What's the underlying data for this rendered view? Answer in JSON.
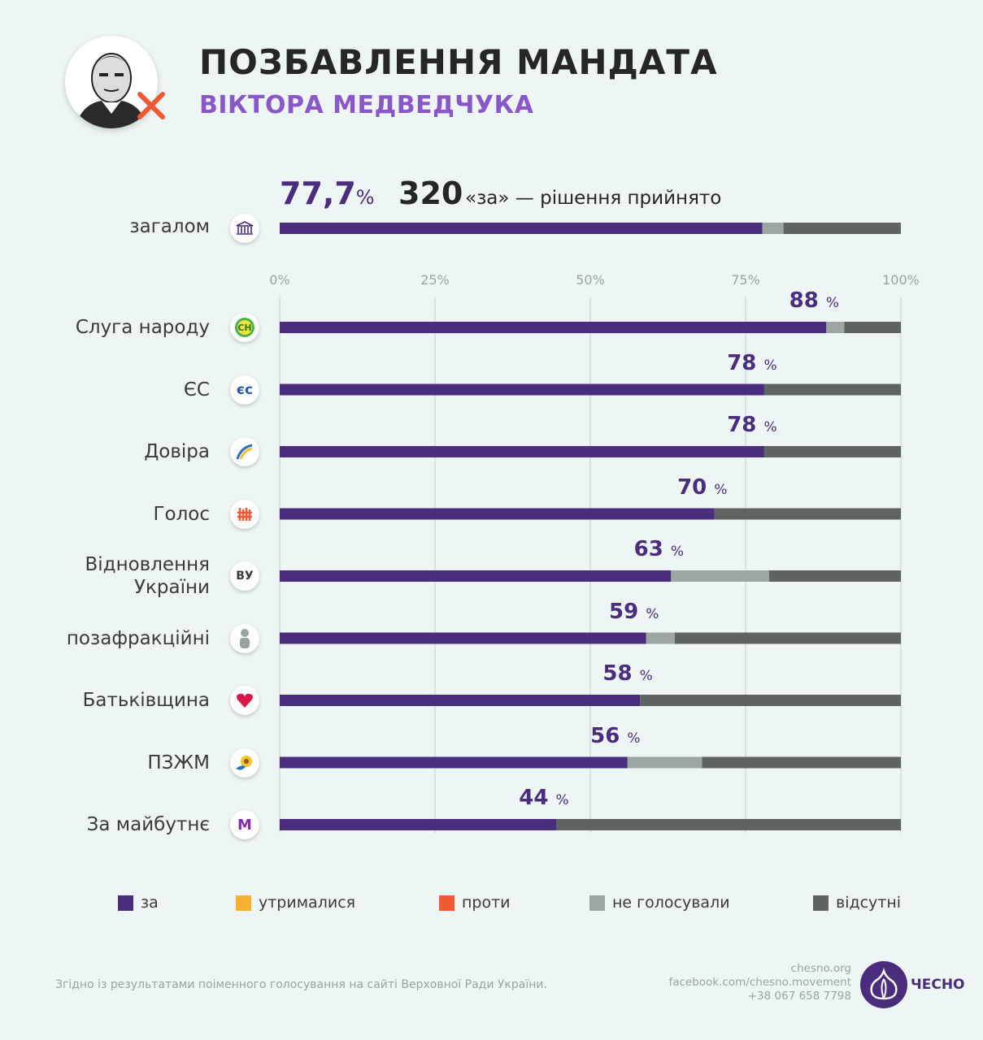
{
  "header": {
    "title": "ПОЗБАВЛЕННЯ МАНДАТА",
    "subtitle": "ВІКТОРА МЕДВЕДЧУКА",
    "portrait_icon": "portrait-avatar",
    "cross_icon": "red-x-icon"
  },
  "summary": {
    "percent": "77,7",
    "percent_sign": "%",
    "count": "320",
    "text": "«за» — рішення прийнято"
  },
  "chart_data": {
    "type": "bar",
    "orientation": "horizontal",
    "stacked": true,
    "xlim": [
      0,
      100
    ],
    "xticks": [
      "0%",
      "25%",
      "50%",
      "75%",
      "100%"
    ],
    "overall": {
      "label": "загалом",
      "icon": "parliament-icon",
      "values": {
        "for": 77.7,
        "abstained": 0,
        "against": 0,
        "not_voted": 3.4,
        "absent": 18.9
      }
    },
    "categories": [
      "Слуга народу",
      "ЄС",
      "Довіра",
      "Голос",
      "Відновлення\nУкраїни",
      "позафракційні",
      "Батьківщина",
      "ПЗЖМ",
      "За майбутнє"
    ],
    "category_lines": [
      [
        "Слуга народу"
      ],
      [
        "ЄС"
      ],
      [
        "Довіра"
      ],
      [
        "Голос"
      ],
      [
        "Відновлення",
        "України"
      ],
      [
        "позафракційні"
      ],
      [
        "Батьківщина"
      ],
      [
        "ПЗЖМ"
      ],
      [
        "За майбутнє"
      ]
    ],
    "icons": [
      "sluha-narodu-icon",
      "yes-party-icon",
      "dovira-icon",
      "holos-icon",
      "vidnovlennia-icon",
      "independent-person-icon",
      "batkivshchyna-heart-icon",
      "pzzhm-sunflower-icon",
      "za-maibutnie-icon"
    ],
    "icon_text": [
      "СН",
      "єс",
      "",
      "",
      "ВУ",
      "",
      "",
      "",
      "M"
    ],
    "labels": [
      "88",
      "78",
      "78",
      "70",
      "63",
      "59",
      "58",
      "56",
      "44"
    ],
    "label_sign": "%",
    "series": [
      {
        "name": "за",
        "color": "#4a2d7c",
        "values": [
          88,
          78,
          78,
          70,
          63,
          59,
          58,
          56,
          44.5
        ]
      },
      {
        "name": "утрималися",
        "color": "#f6b133",
        "values": [
          0,
          0,
          0,
          0,
          0,
          0,
          0,
          0,
          0
        ]
      },
      {
        "name": "проти",
        "color": "#f05a32",
        "values": [
          0,
          0,
          0,
          0,
          0,
          0,
          0,
          0,
          0
        ]
      },
      {
        "name": "не голосували",
        "color": "#9ea6a4",
        "values": [
          2.9,
          0,
          0,
          0,
          15.8,
          4.6,
          0,
          12,
          0
        ]
      },
      {
        "name": "відсутні",
        "color": "#5e6462",
        "values": [
          9.1,
          22,
          22,
          30,
          21.2,
          36.4,
          42,
          32,
          55.5
        ]
      }
    ]
  },
  "legend": [
    {
      "label": "за",
      "color": "#4a2d7c"
    },
    {
      "label": "утрималися",
      "color": "#f6b133"
    },
    {
      "label": "проти",
      "color": "#f05a32"
    },
    {
      "label": "не голосували",
      "color": "#9ea6a4"
    },
    {
      "label": "відсутні",
      "color": "#5e6462"
    }
  ],
  "footer": {
    "note": "Згідно із результатами поіменного голосування на сайті Верховної Ради України.",
    "site": "chesno.org",
    "facebook": "facebook.com/chesno.movement",
    "phone": "+38 067 658 7798",
    "logo_text": "ЧЕСНО",
    "logo_icon": "chesno-garlic-icon"
  }
}
